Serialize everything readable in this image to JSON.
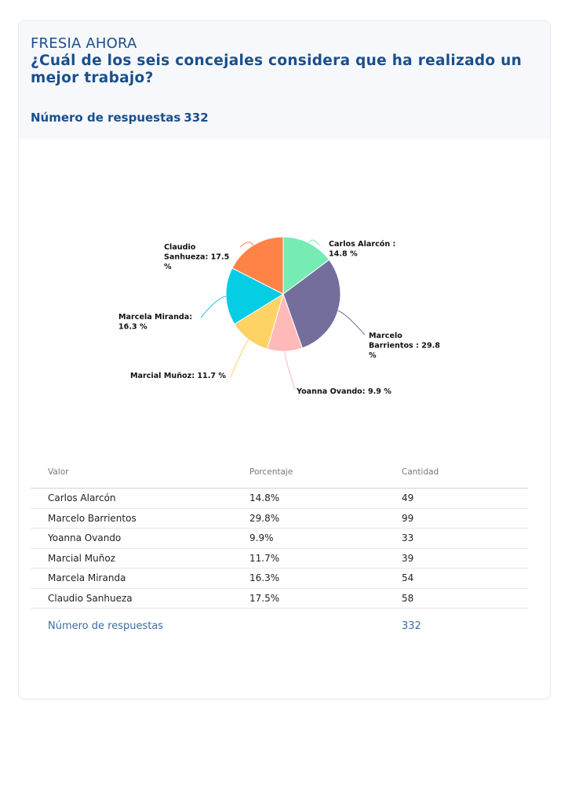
{
  "header": {
    "brand": "FRESIA AHORA",
    "question": "¿Cuál de los seis concejales considera que ha realizado un mejor trabajo?",
    "responses_label": "Número de respuestas",
    "responses_count": "332"
  },
  "colors": {
    "title": "#1a4f8b",
    "header_bg": "#f6f8fc",
    "footer_text": "#3d6ca3"
  },
  "chart_data": {
    "type": "pie",
    "title": "",
    "slices": [
      {
        "name": "Carlos Alarcón ",
        "label": "Carlos Alarcón  : 14.8 %",
        "value": 14.8,
        "color": "#77ebb4"
      },
      {
        "name": "Marcelo Barrientos ",
        "label": "Marcelo Barrientos : 29.8 %",
        "value": 29.8,
        "color": "#736e9c"
      },
      {
        "name": "Yoanna Ovando",
        "label": "Yoanna Ovando: 9.9 %",
        "value": 9.9,
        "color": "#ffb9b9"
      },
      {
        "name": "Marcial Muñoz",
        "label": "Marcial Muñoz: 11.7 %",
        "value": 11.7,
        "color": "#ffd266"
      },
      {
        "name": "Marcela Miranda",
        "label": "Marcela Miranda: 16.3 %",
        "value": 16.3,
        "color": "#04cde4"
      },
      {
        "name": "Claudio Sanhueza",
        "label": "Claudio Sanhueza: 17.5 %",
        "value": 17.5,
        "color": "#ff8347"
      }
    ]
  },
  "table": {
    "columns": [
      "Valor",
      "Porcentaje",
      "Cantidad"
    ],
    "rows": [
      {
        "valor": "Carlos Alarcón",
        "porcentaje": "14.8%",
        "cantidad": "49"
      },
      {
        "valor": "Marcelo Barrientos",
        "porcentaje": "29.8%",
        "cantidad": "99"
      },
      {
        "valor": "Yoanna Ovando",
        "porcentaje": "9.9%",
        "cantidad": "33"
      },
      {
        "valor": "Marcial Muñoz",
        "porcentaje": "11.7%",
        "cantidad": "39"
      },
      {
        "valor": "Marcela Miranda",
        "porcentaje": "16.3%",
        "cantidad": "54"
      },
      {
        "valor": "Claudio Sanhueza",
        "porcentaje": "17.5%",
        "cantidad": "58"
      }
    ],
    "footer": {
      "label": "Número de respuestas",
      "value": "332"
    }
  }
}
